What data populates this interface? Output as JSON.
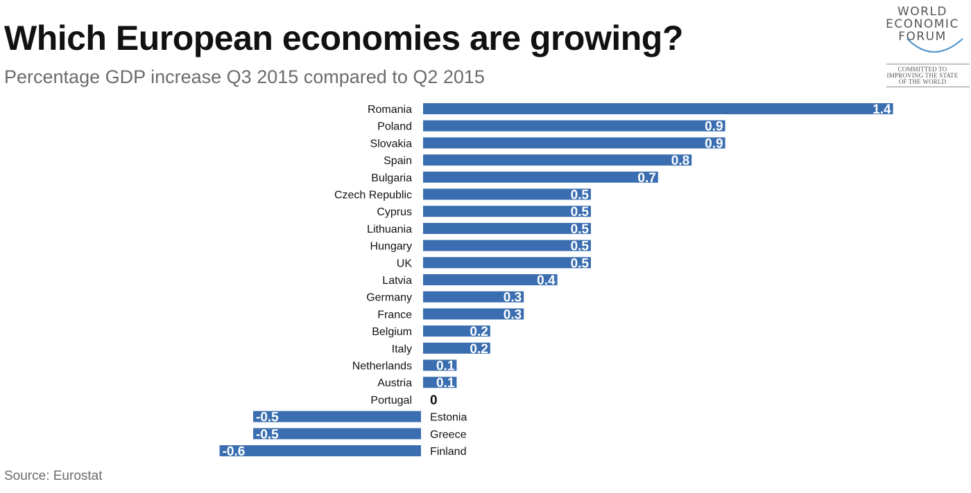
{
  "header": {
    "title": "Which European economies are growing?",
    "subtitle": "Percentage GDP increase Q3 2015 compared to Q2 2015"
  },
  "footer": {
    "source": "Source: Eurostat"
  },
  "logo": {
    "line1": "WORLD",
    "line2": "ECONOMIC",
    "line3": "FORUM",
    "tagline1": "COMMITTED TO",
    "tagline2": "IMPROVING THE STATE",
    "tagline3": "OF THE WORLD"
  },
  "colors": {
    "bar": "#3a6eb0",
    "positive_label": "#ffffff",
    "zero_label": "#111111"
  },
  "chart_data": {
    "type": "bar",
    "orientation": "horizontal",
    "categories": [
      "Romania",
      "Poland",
      "Slovakia",
      "Spain",
      "Bulgaria",
      "Czech Republic",
      "Cyprus",
      "Lithuania",
      "Hungary",
      "UK",
      "Latvia",
      "Germany",
      "France",
      "Belgium",
      "Italy",
      "Netherlands",
      "Austria",
      "Portugal",
      "Estonia",
      "Greece",
      "Finland"
    ],
    "values": [
      1.4,
      0.9,
      0.9,
      0.8,
      0.7,
      0.5,
      0.5,
      0.5,
      0.5,
      0.5,
      0.4,
      0.3,
      0.3,
      0.2,
      0.2,
      0.1,
      0.1,
      0,
      -0.5,
      -0.5,
      -0.6
    ],
    "labels": [
      "1.4",
      "0.9",
      "0.9",
      "0.8",
      "0.7",
      "0.5",
      "0.5",
      "0.5",
      "0.5",
      "0.5",
      "0.4",
      "0.3",
      "0.3",
      "0.2",
      "0.2",
      "0.1",
      "0.1",
      "0",
      "-0.5",
      "-0.5",
      "-0.6"
    ],
    "title": "Which European economies are growing?",
    "subtitle": "Percentage GDP increase Q3 2015 compared to Q2 2015",
    "xlabel": "",
    "ylabel": "",
    "xlim": [
      -0.6,
      1.4
    ],
    "grid": false,
    "legend": "none",
    "source": "Source: Eurostat"
  }
}
